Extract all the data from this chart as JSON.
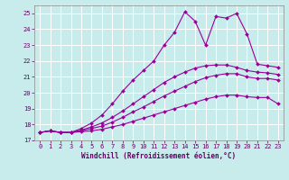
{
  "xlabel": "Windchill (Refroidissement éolien,°C)",
  "bg_color": "#c8ecec",
  "line_color": "#990099",
  "grid_color": "#ffffff",
  "xlim_min": -0.5,
  "xlim_max": 23.5,
  "ylim_min": 17,
  "ylim_max": 25.5,
  "yticks": [
    17,
    18,
    19,
    20,
    21,
    22,
    23,
    24,
    25
  ],
  "xticks": [
    0,
    1,
    2,
    3,
    4,
    5,
    6,
    7,
    8,
    9,
    10,
    11,
    12,
    13,
    14,
    15,
    16,
    17,
    18,
    19,
    20,
    21,
    22,
    23
  ],
  "lines": [
    [
      17.5,
      17.6,
      17.5,
      17.5,
      17.55,
      17.6,
      17.7,
      17.85,
      18.0,
      18.2,
      18.4,
      18.6,
      18.8,
      19.0,
      19.2,
      19.4,
      19.6,
      19.75,
      19.85,
      19.85,
      19.75,
      19.7,
      19.7,
      19.3
    ],
    [
      17.5,
      17.6,
      17.5,
      17.5,
      17.6,
      17.75,
      17.9,
      18.15,
      18.45,
      18.8,
      19.1,
      19.45,
      19.8,
      20.1,
      20.4,
      20.7,
      20.95,
      21.1,
      21.2,
      21.2,
      21.0,
      20.9,
      20.9,
      20.8
    ],
    [
      17.5,
      17.6,
      17.5,
      17.5,
      17.65,
      17.85,
      18.1,
      18.45,
      18.85,
      19.3,
      19.75,
      20.2,
      20.65,
      21.0,
      21.3,
      21.55,
      21.7,
      21.75,
      21.75,
      21.6,
      21.4,
      21.3,
      21.25,
      21.15
    ],
    [
      17.5,
      17.6,
      17.5,
      17.5,
      17.75,
      18.1,
      18.6,
      19.3,
      20.1,
      20.8,
      21.4,
      22.0,
      23.0,
      23.8,
      25.1,
      24.5,
      23.0,
      24.8,
      24.7,
      25.0,
      23.7,
      21.8,
      21.7,
      21.6
    ]
  ],
  "marker": "D",
  "marker_size": 2.0,
  "linewidth": 0.8,
  "tick_fontsize": 5.0,
  "xlabel_fontsize": 5.5
}
